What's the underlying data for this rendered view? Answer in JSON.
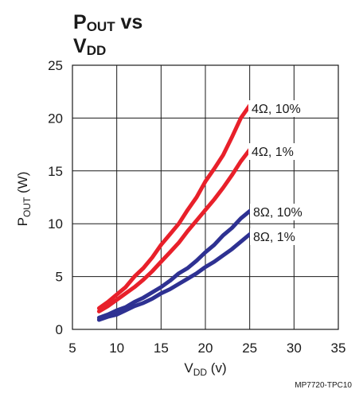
{
  "chart_data": {
    "type": "line",
    "title": {
      "line1_main": "P",
      "line1_sub": "OUT",
      "line1_rest": " vs",
      "line2_main": "V",
      "line2_sub": "DD"
    },
    "xlabel": {
      "main": "V",
      "sub": "DD",
      "rest": " (v)"
    },
    "ylabel": {
      "main": "P",
      "sub": "OUT",
      "rest": " (W)"
    },
    "xlim": [
      5,
      35
    ],
    "ylim": [
      0,
      25
    ],
    "xticks": [
      5,
      10,
      15,
      20,
      25,
      30,
      35
    ],
    "yticks": [
      0,
      5,
      10,
      15,
      20,
      25
    ],
    "grid": true,
    "series": [
      {
        "name": "4Ω, 10%",
        "color": "#e8202a",
        "x": [
          8,
          9,
          10,
          11,
          12,
          13,
          14,
          15,
          16,
          17,
          18,
          19,
          20,
          21,
          22,
          23,
          24,
          25
        ],
        "y": [
          2.0,
          2.6,
          3.3,
          4.0,
          5.0,
          5.8,
          6.8,
          8.0,
          9.0,
          10.0,
          11.3,
          12.5,
          14.0,
          15.2,
          16.5,
          18.2,
          20.0,
          21.2
        ]
      },
      {
        "name": "4Ω, 1%",
        "color": "#e8202a",
        "x": [
          8,
          9,
          10,
          11,
          12,
          13,
          14,
          15,
          16,
          17,
          18,
          19,
          20,
          21,
          22,
          23,
          24,
          25
        ],
        "y": [
          1.7,
          2.2,
          2.8,
          3.4,
          4.0,
          4.7,
          5.5,
          6.4,
          7.3,
          8.2,
          9.3,
          10.3,
          11.3,
          12.3,
          13.4,
          14.6,
          15.9,
          17.0
        ]
      },
      {
        "name": "8Ω, 10%",
        "color": "#2e3192",
        "x": [
          8,
          9,
          10,
          11,
          12,
          13,
          14,
          15,
          16,
          17,
          18,
          19,
          20,
          21,
          22,
          23,
          24,
          25
        ],
        "y": [
          1.1,
          1.4,
          1.8,
          2.1,
          2.6,
          3.0,
          3.5,
          4.0,
          4.6,
          5.3,
          5.8,
          6.5,
          7.3,
          8.0,
          8.9,
          9.6,
          10.5,
          11.2
        ]
      },
      {
        "name": "8Ω, 1%",
        "color": "#2e3192",
        "x": [
          8,
          9,
          10,
          11,
          12,
          13,
          14,
          15,
          16,
          17,
          18,
          19,
          20,
          21,
          22,
          23,
          24,
          25
        ],
        "y": [
          0.9,
          1.2,
          1.4,
          1.8,
          2.2,
          2.5,
          2.9,
          3.4,
          3.8,
          4.3,
          4.8,
          5.3,
          5.9,
          6.4,
          7.0,
          7.6,
          8.3,
          9.0
        ]
      }
    ],
    "annotations": [
      "4Ω, 10%",
      "4Ω, 1%",
      "8Ω, 10%",
      "8Ω, 1%"
    ]
  },
  "footer": "MP7720-TPC10"
}
